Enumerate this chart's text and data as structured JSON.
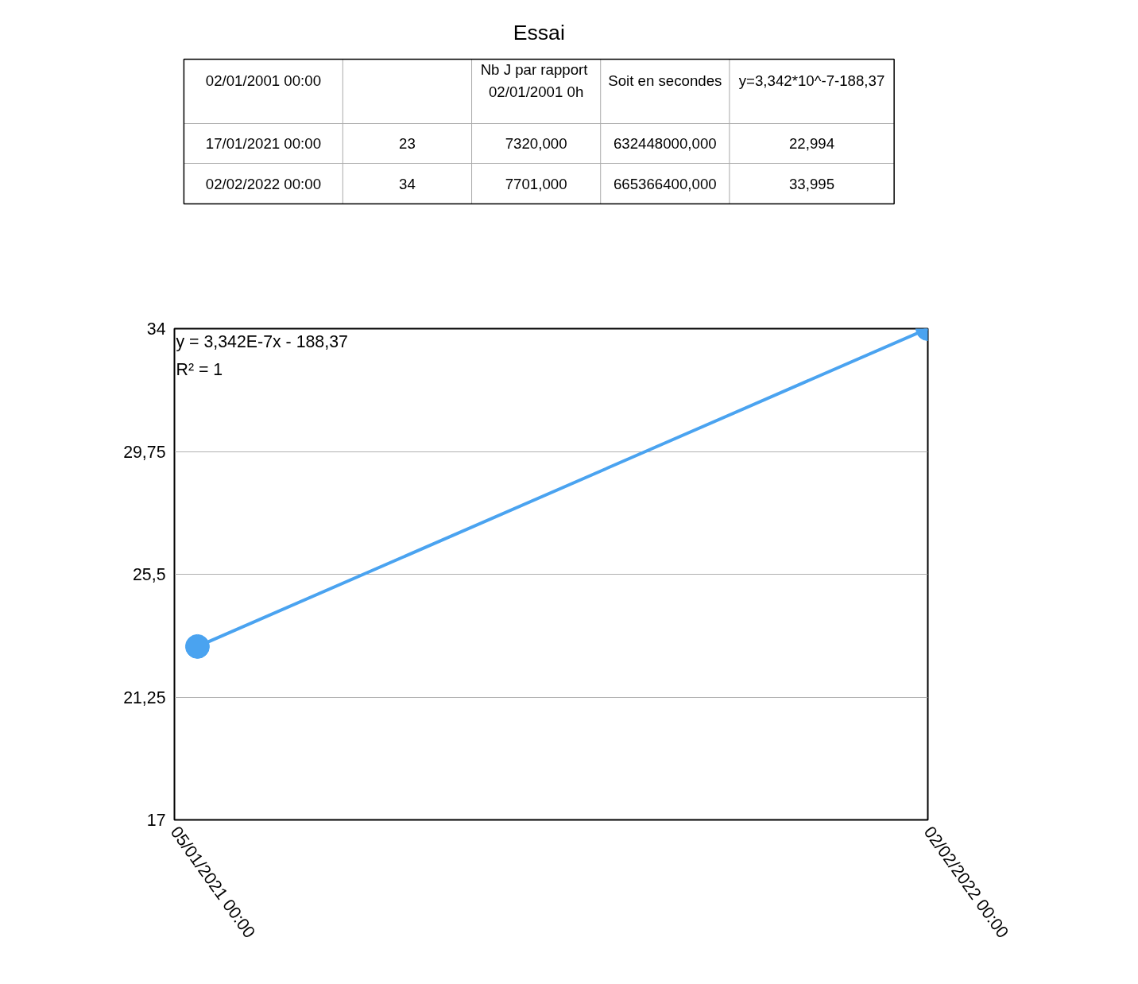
{
  "chart_data": {
    "type": "line",
    "title": "Essai",
    "x": [
      "2021-01-17",
      "2022-02-02"
    ],
    "series": [
      {
        "color": "#4aa3f0",
        "values": [
          23,
          34
        ]
      }
    ],
    "xlim": [
      "2021-01-05",
      "2022-02-02"
    ],
    "xticks": [
      {
        "value": "2021-01-05",
        "label": "05/01/2021 00:00"
      },
      {
        "value": "2022-02-02",
        "label": "02/02/2022 00:00"
      }
    ],
    "ylim": [
      17,
      34
    ],
    "yticks": [
      17,
      {
        "value": 21.25,
        "label": "21,25"
      },
      {
        "value": 25.5,
        "label": "25,5"
      },
      {
        "value": 29.75,
        "label": "29,75"
      },
      34
    ],
    "grid": "y",
    "marker": "circle",
    "annotations": [
      "y = 3,342E-7x - 188,37",
      "R² = 1",
      "02/01/2001 00:00",
      "Nb J  par rapport\n02/01/2001 0h",
      "Soit en secondes",
      "y=3,342*10^-7-188,37",
      "17/01/2021 00:00",
      "23",
      "7320,000",
      "632448000,000",
      "22,994",
      "02/02/2022 00:00",
      "34",
      "7701,000",
      "665366400,000",
      "33,995"
    ]
  }
}
